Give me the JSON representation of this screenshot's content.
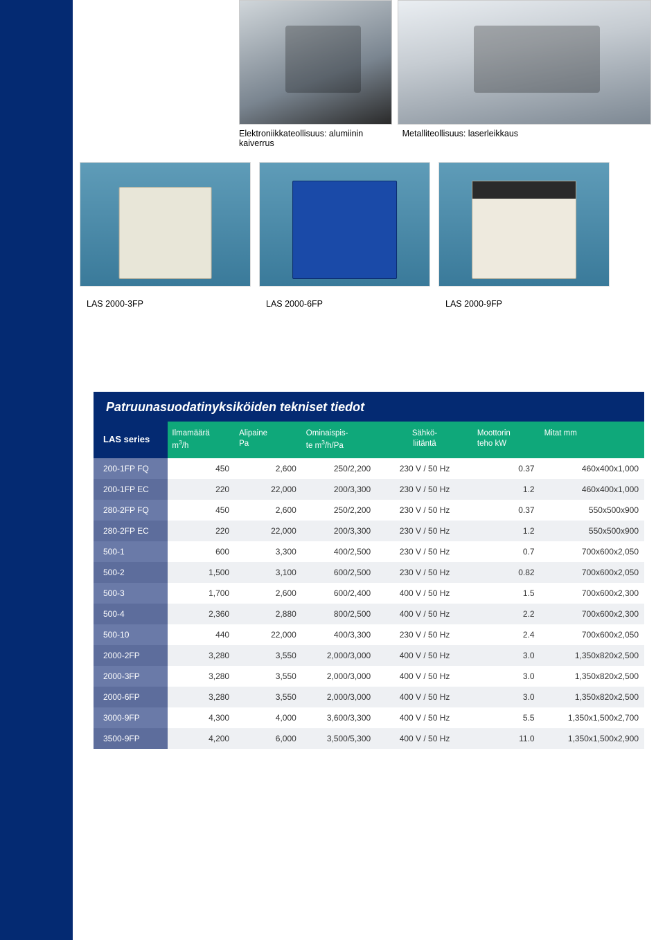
{
  "captions": {
    "left": "Elektroniikkateollisuus: alumiinin kaiverrus",
    "right": "Metalliteollisuus: laserleikkaus"
  },
  "products": {
    "p1": "LAS 2000-3FP",
    "p2": "LAS 2000-6FP",
    "p3": "LAS 2000-9FP"
  },
  "table": {
    "title": "Patruunasuodatinyksiköiden tekniset tiedot",
    "headers": {
      "series": "LAS series",
      "air": "Ilmamäärä m³/h",
      "pa": "Alipaine Pa",
      "om": "Ominaispis- te m³/h/Pa",
      "el": "Sähkö- liitäntä",
      "kw": "Moottorin teho kW",
      "mm": "Mitat mm"
    },
    "rows": [
      {
        "model": "200-1FP FQ",
        "air": "450",
        "pa": "2,600",
        "om": "250/2,200",
        "el": "230 V / 50 Hz",
        "kw": "0.37",
        "mm": "460x400x1,000"
      },
      {
        "model": "200-1FP EC",
        "air": "220",
        "pa": "22,000",
        "om": "200/3,300",
        "el": "230 V / 50 Hz",
        "kw": "1.2",
        "mm": "460x400x1,000"
      },
      {
        "model": "280-2FP FQ",
        "air": "450",
        "pa": "2,600",
        "om": "250/2,200",
        "el": "230 V / 50 Hz",
        "kw": "0.37",
        "mm": "550x500x900"
      },
      {
        "model": "280-2FP EC",
        "air": "220",
        "pa": "22,000",
        "om": "200/3,300",
        "el": "230 V / 50 Hz",
        "kw": "1.2",
        "mm": "550x500x900"
      },
      {
        "model": "500-1",
        "air": "600",
        "pa": "3,300",
        "om": "400/2,500",
        "el": "230 V / 50 Hz",
        "kw": "0.7",
        "mm": "700x600x2,050"
      },
      {
        "model": "500-2",
        "air": "1,500",
        "pa": "3,100",
        "om": "600/2,500",
        "el": "230 V / 50 Hz",
        "kw": "0.82",
        "mm": "700x600x2,050"
      },
      {
        "model": "500-3",
        "air": "1,700",
        "pa": "2,600",
        "om": "600/2,400",
        "el": "400 V / 50 Hz",
        "kw": "1.5",
        "mm": "700x600x2,300"
      },
      {
        "model": "500-4",
        "air": "2,360",
        "pa": "2,880",
        "om": "800/2,500",
        "el": "400 V / 50 Hz",
        "kw": "2.2",
        "mm": "700x600x2,300"
      },
      {
        "model": "500-10",
        "air": "440",
        "pa": "22,000",
        "om": "400/3,300",
        "el": "230 V / 50 Hz",
        "kw": "2.4",
        "mm": "700x600x2,050"
      },
      {
        "model": "2000-2FP",
        "air": "3,280",
        "pa": "3,550",
        "om": "2,000/3,000",
        "el": "400 V / 50 Hz",
        "kw": "3.0",
        "mm": "1,350x820x2,500"
      },
      {
        "model": "2000-3FP",
        "air": "3,280",
        "pa": "3,550",
        "om": "2,000/3,000",
        "el": "400 V / 50 Hz",
        "kw": "3.0",
        "mm": "1,350x820x2,500"
      },
      {
        "model": "2000-6FP",
        "air": "3,280",
        "pa": "3,550",
        "om": "2,000/3,000",
        "el": "400 V / 50 Hz",
        "kw": "3.0",
        "mm": "1,350x820x2,500"
      },
      {
        "model": "3000-9FP",
        "air": "4,300",
        "pa": "4,000",
        "om": "3,600/3,300",
        "el": "400 V / 50 Hz",
        "kw": "5.5",
        "mm": "1,350x1,500x2,700"
      },
      {
        "model": "3500-9FP",
        "air": "4,200",
        "pa": "6,000",
        "om": "3,500/5,300",
        "el": "400 V / 50 Hz",
        "kw": "11.0",
        "mm": "1,350x1,500x2,900"
      }
    ],
    "colors": {
      "title_bg": "#042a72",
      "header_bg": "#0fa87a",
      "model_bg": "#6a7aa8",
      "row_alt_bg": "#eef0f3"
    }
  }
}
